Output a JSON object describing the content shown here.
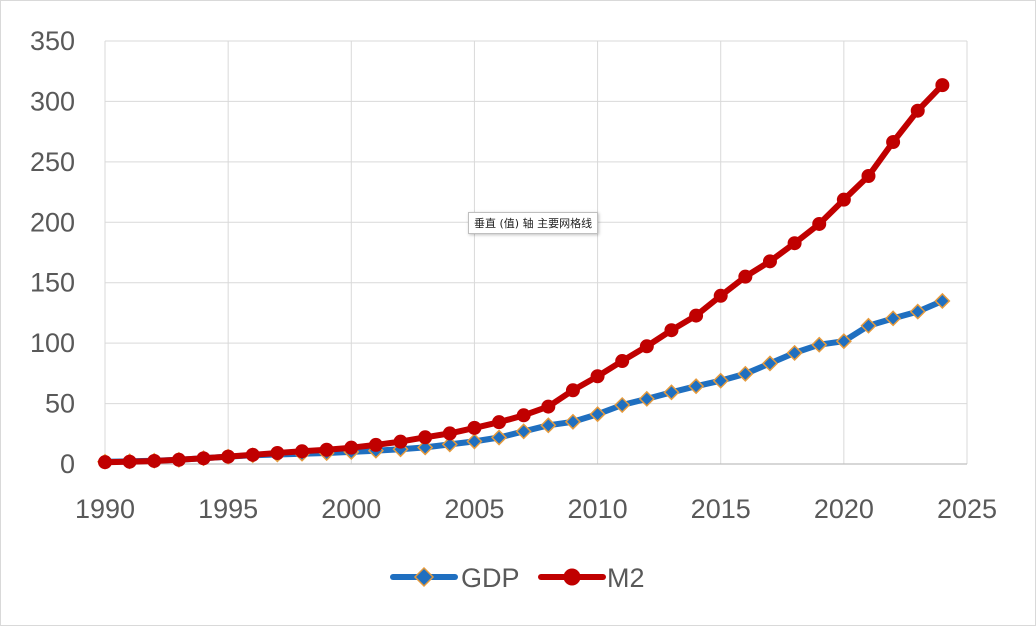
{
  "tooltip": "垂直 (值) 轴 主要网格线",
  "chart_data": {
    "type": "line",
    "title": "",
    "xlabel": "",
    "ylabel": "",
    "xlim": [
      1990,
      2025
    ],
    "ylim": [
      0,
      350
    ],
    "xticks": [
      1990,
      1995,
      2000,
      2005,
      2010,
      2015,
      2020,
      2025
    ],
    "yticks": [
      0,
      50,
      100,
      150,
      200,
      250,
      300,
      350
    ],
    "grid": true,
    "legend_position": "bottom",
    "x": [
      1990,
      1991,
      1992,
      1993,
      1994,
      1995,
      1996,
      1997,
      1998,
      1999,
      2000,
      2001,
      2002,
      2003,
      2004,
      2005,
      2006,
      2007,
      2008,
      2009,
      2010,
      2011,
      2012,
      2013,
      2014,
      2015,
      2016,
      2017,
      2018,
      2019,
      2020,
      2021,
      2022,
      2023,
      2024
    ],
    "series": [
      {
        "name": "GDP",
        "color": "#1f6fc0",
        "marker_edge": "#e59a3c",
        "marker": "diamond",
        "values": [
          1.9,
          2.2,
          2.7,
          3.5,
          4.8,
          6.1,
          7.2,
          7.9,
          8.5,
          9.1,
          10.0,
          11.0,
          12.2,
          13.7,
          16.2,
          18.7,
          21.9,
          27.0,
          32.0,
          34.9,
          41.2,
          48.8,
          53.9,
          59.3,
          64.4,
          68.9,
          74.6,
          83.2,
          91.9,
          98.7,
          101.6,
          114.4,
          120.5,
          126.1,
          134.9
        ]
      },
      {
        "name": "M2",
        "color": "#c00000",
        "marker_edge": "#c00000",
        "marker": "circle",
        "values": [
          1.5,
          1.9,
          2.5,
          3.5,
          4.7,
          6.1,
          7.6,
          9.1,
          10.5,
          11.8,
          13.5,
          15.8,
          18.5,
          22.1,
          25.3,
          29.9,
          34.6,
          40.3,
          47.5,
          61.0,
          72.6,
          85.2,
          97.4,
          110.7,
          122.8,
          139.2,
          155.0,
          167.7,
          182.7,
          198.6,
          218.7,
          238.3,
          266.4,
          292.3,
          313.5
        ]
      }
    ]
  }
}
